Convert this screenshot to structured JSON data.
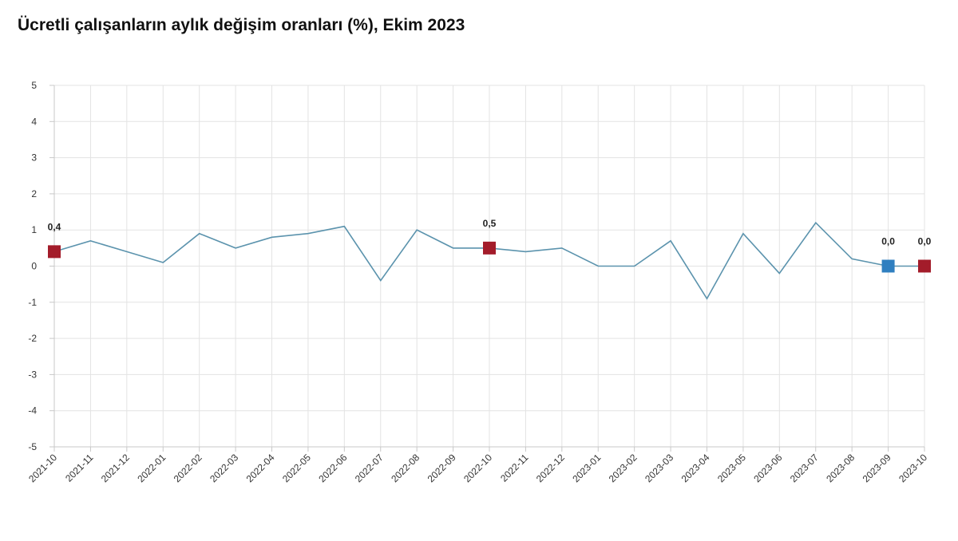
{
  "chart_data": {
    "type": "line",
    "title": "Ücretli çalışanların aylık değişim oranları (%), Ekim 2023",
    "xlabel": "",
    "ylabel": "",
    "ylim": [
      -5,
      5
    ],
    "yticks": [
      "5",
      "4",
      "3",
      "2",
      "1",
      "0",
      "-1",
      "-2",
      "-3",
      "-4",
      "-5"
    ],
    "grid": true,
    "categories": [
      "2021-10",
      "2021-11",
      "2021-12",
      "2022-01",
      "2022-02",
      "2022-03",
      "2022-04",
      "2022-05",
      "2022-06",
      "2022-07",
      "2022-08",
      "2022-09",
      "2022-10",
      "2022-11",
      "2022-12",
      "2023-01",
      "2023-02",
      "2023-03",
      "2023-04",
      "2023-05",
      "2023-06",
      "2023-07",
      "2023-08",
      "2023-09",
      "2023-10"
    ],
    "series": [
      {
        "values": [
          0.4,
          0.7,
          0.4,
          0.1,
          0.9,
          0.5,
          0.8,
          0.9,
          1.1,
          -0.4,
          1.0,
          0.5,
          0.5,
          0.4,
          0.5,
          0.0,
          0.0,
          0.7,
          -0.9,
          0.9,
          -0.2,
          1.2,
          0.2,
          0.0,
          0.0
        ]
      }
    ],
    "highlighted_points": [
      {
        "category": "2021-10",
        "value": 0.4,
        "label": "0,4",
        "color": "#a31c2a"
      },
      {
        "category": "2022-10",
        "value": 0.5,
        "label": "0,5",
        "color": "#a31c2a"
      },
      {
        "category": "2023-09",
        "value": 0.0,
        "label": "0,0",
        "color": "#2f7fc0"
      },
      {
        "category": "2023-10",
        "value": 0.0,
        "label": "0,0",
        "color": "#a31c2a"
      }
    ],
    "colors": {
      "line": "#5b93ad",
      "grid": "#e3e3e3"
    }
  }
}
